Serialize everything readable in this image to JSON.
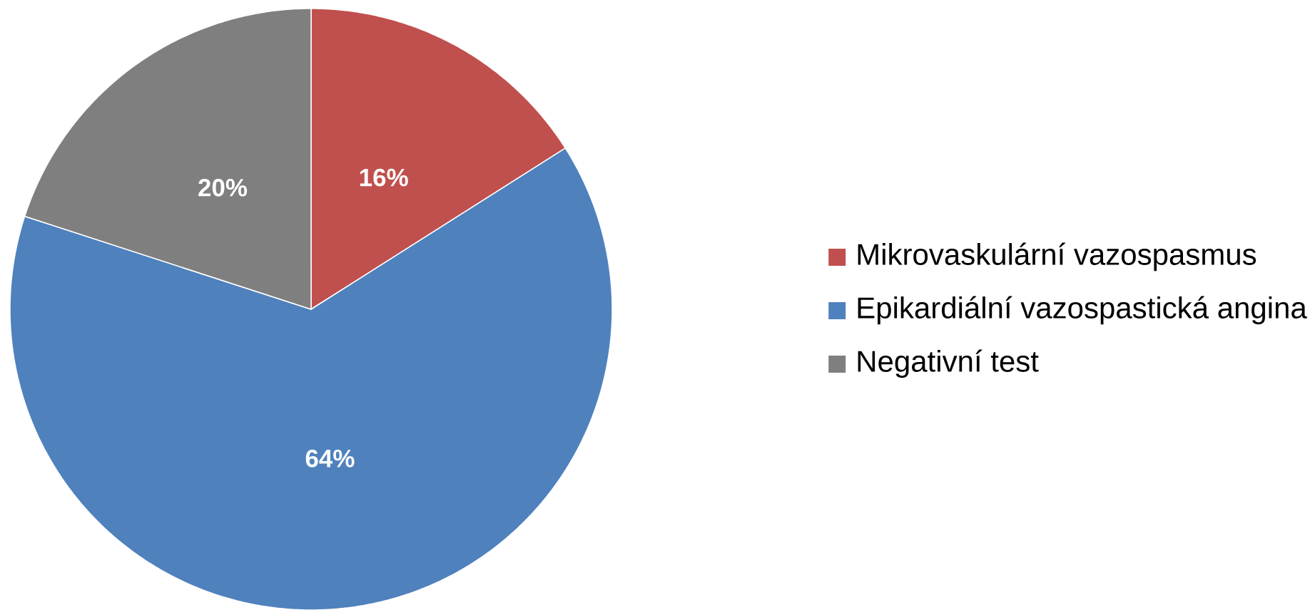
{
  "chart_data": {
    "type": "pie",
    "categories": [
      "Mikrovaskulární vazospasmus",
      "Epikardiální vazospastická angina",
      "Negativní test"
    ],
    "values": [
      16,
      64,
      20
    ],
    "colors": [
      "#c0504d",
      "#4f81bd",
      "#7f7f7f"
    ],
    "value_labels": [
      "16%",
      "64%",
      "20%"
    ],
    "legend": "right"
  }
}
